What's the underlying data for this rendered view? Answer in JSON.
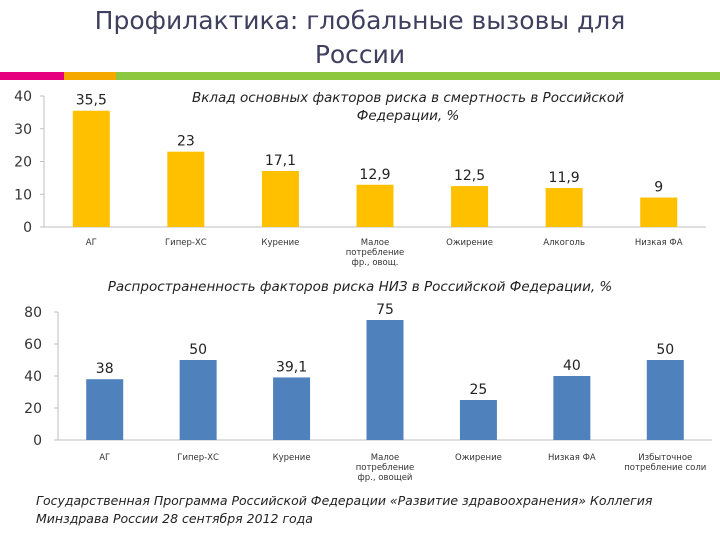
{
  "slide": {
    "title_line1": "Профилактика: глобальные вызовы для",
    "title_line2": "России",
    "footer_line1": "Государственная Программа Российской Федерации «Развитие здравоохранения» Коллегия",
    "footer_line2": "Минздрава России 28 сентября 2012 года"
  },
  "colors": {
    "title": "#3f3f5f",
    "bar_yellow": "#ffc000",
    "bar_blue": "#4f81bd",
    "accent": [
      "#e6007e",
      "#f5a800",
      "#8dc63f"
    ]
  },
  "chart_data": [
    {
      "type": "bar",
      "title_line1": "Вклад основных факторов риска в смертность в Российской",
      "title_line2": "Федерации, %",
      "categories": [
        [
          "АГ"
        ],
        [
          "Гипер-ХС"
        ],
        [
          "Курение"
        ],
        [
          "Малое",
          "потребление",
          "фр., овощ."
        ],
        [
          "Ожирение"
        ],
        [
          "Алкоголь"
        ],
        [
          "Низкая ФА"
        ]
      ],
      "values": [
        35.5,
        23,
        17.1,
        12.9,
        12.5,
        11.9,
        9
      ],
      "value_labels": [
        "35,5",
        "23",
        "17,1",
        "12,9",
        "12,5",
        "11,9",
        "9"
      ],
      "ylim": [
        0,
        40
      ],
      "yticks": [
        0,
        10,
        20,
        30,
        40
      ],
      "grid": false,
      "color": "#ffc000"
    },
    {
      "type": "bar",
      "title_line1": "Распространенность факторов риска НИЗ в Российской Федерации, %",
      "categories": [
        [
          "АГ"
        ],
        [
          "Гипер-ХС"
        ],
        [
          "Курение"
        ],
        [
          "Малое",
          "потребление",
          "фр., овощей"
        ],
        [
          "Ожирение"
        ],
        [
          "Низкая ФА"
        ],
        [
          "Избыточное",
          "потребление соли"
        ]
      ],
      "values": [
        38,
        50,
        39.1,
        75,
        25,
        40,
        50
      ],
      "value_labels": [
        "38",
        "50",
        "39,1",
        "75",
        "25",
        "40",
        "50"
      ],
      "ylim": [
        0,
        80
      ],
      "yticks": [
        0,
        20,
        40,
        60,
        80
      ],
      "grid": false,
      "color": "#4f81bd"
    }
  ]
}
